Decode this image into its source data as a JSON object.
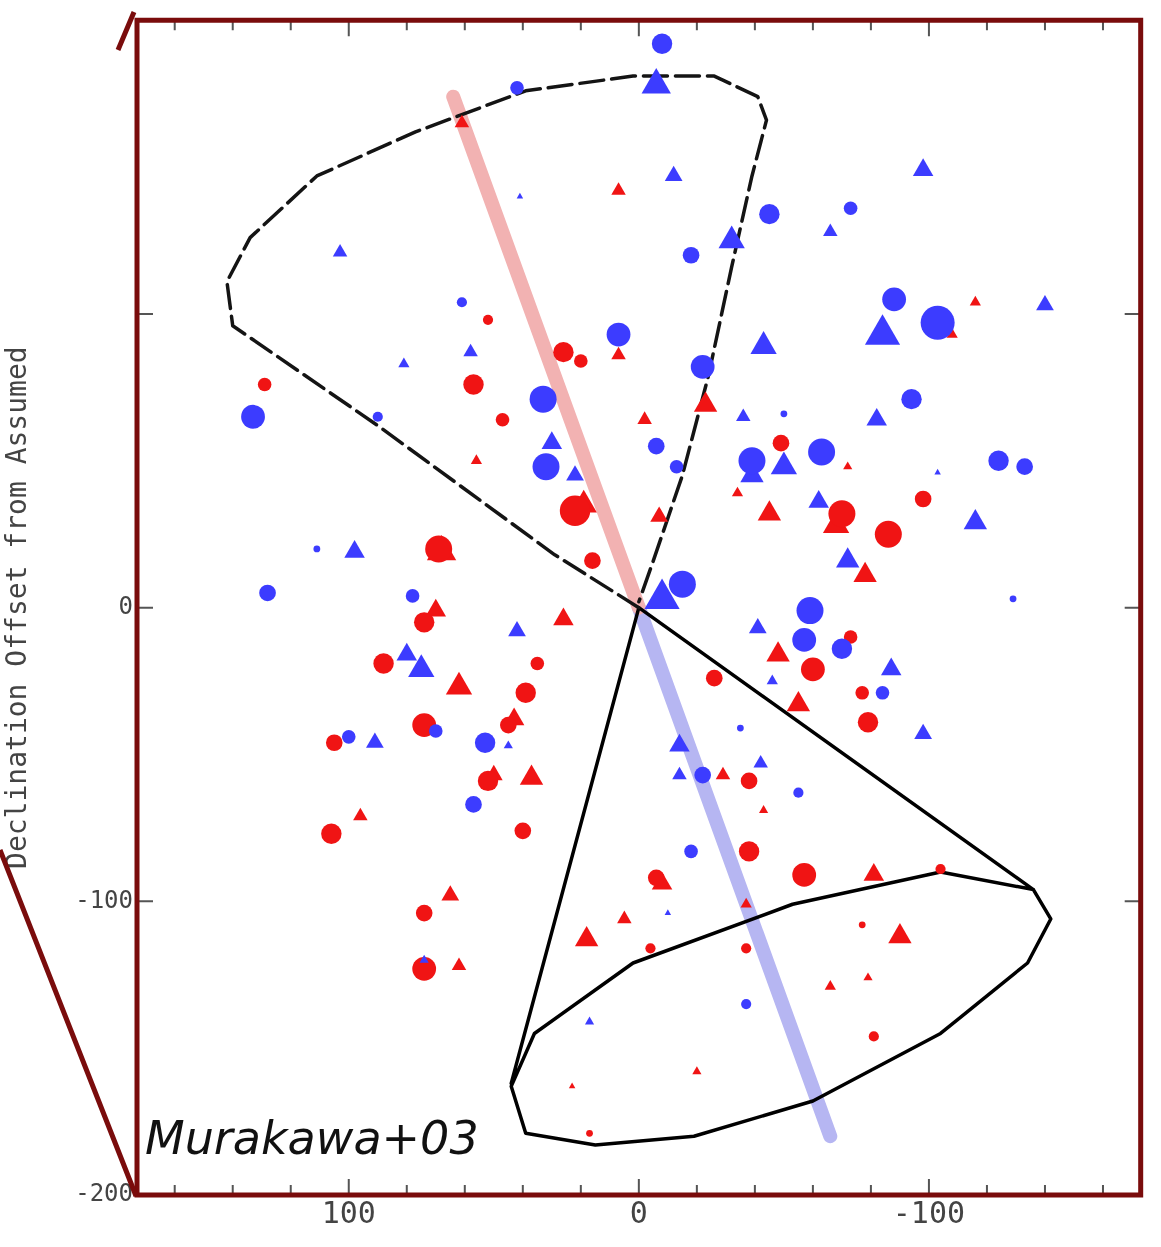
{
  "chart_data": {
    "type": "bubble",
    "ylabel": "Declination Offset from Assumed",
    "annotations": [
      "Murakawa+03"
    ],
    "xlim": [
      173,
      -173
    ],
    "ylim": [
      -200,
      200
    ],
    "xticks": [
      {
        "value": 160,
        "label": null
      },
      {
        "value": 140,
        "label": null
      },
      {
        "value": 120,
        "label": null
      },
      100,
      {
        "value": 80,
        "label": null
      },
      {
        "value": 60,
        "label": null
      },
      {
        "value": 40,
        "label": null
      },
      {
        "value": 20,
        "label": null
      },
      0,
      {
        "value": -20,
        "label": null
      },
      {
        "value": -40,
        "label": null
      },
      {
        "value": -60,
        "label": null
      },
      {
        "value": -80,
        "label": null
      },
      -100,
      {
        "value": -120,
        "label": null
      },
      {
        "value": -140,
        "label": null
      },
      {
        "value": -160,
        "label": null
      }
    ],
    "yticks": [
      -200,
      -100,
      0,
      {
        "value": 100,
        "label": null
      }
    ],
    "grid": false,
    "legend": false,
    "series": [
      {
        "marker": "circle",
        "color": "#3c3cff",
        "x": [
          -8,
          42,
          -45,
          -73,
          -18,
          61,
          -88,
          -103,
          7,
          -22,
          33,
          -94,
          90,
          133,
          -6,
          -13,
          32,
          -39,
          -63,
          -124,
          -133,
          -50,
          111,
          128,
          78,
          -15,
          -59,
          -57,
          -70,
          -129,
          100,
          70,
          53,
          57,
          -22,
          -18,
          -84,
          -35,
          -55,
          -37
        ],
        "values": [
          192,
          177,
          134,
          136,
          120,
          104,
          105,
          97,
          93,
          82,
          71,
          71,
          65,
          65,
          55,
          48,
          48,
          50,
          53,
          50,
          48,
          66,
          20,
          5,
          4,
          8,
          -1,
          -11,
          -14,
          3,
          -44,
          -42,
          -46,
          -67,
          -57,
          -83,
          -29,
          -41,
          -63,
          -135
        ],
        "sizes": [
          0.36,
          0.16,
          0.36,
          0.16,
          0.24,
          0.09,
          0.49,
          1,
          0.49,
          0.49,
          0.63,
          0.36,
          0.09,
          0.49,
          0.24,
          0.16,
          0.63,
          0.63,
          0.63,
          0.36,
          0.24,
          0.04,
          0.04,
          0.24,
          0.16,
          0.63,
          0.63,
          0.49,
          0.36,
          0.04,
          0.16,
          0.16,
          0.36,
          0.24,
          0.24,
          0.16,
          0.16,
          0.04,
          0.09,
          0.09
        ]
      },
      {
        "marker": "triangle",
        "color": "#3c3cff",
        "x": [
          -6,
          -12,
          -98,
          41,
          -66,
          -32,
          103,
          -43,
          -84,
          -140,
          81,
          58,
          -36,
          -82,
          30,
          22,
          -50,
          -39,
          -62,
          -103,
          -116,
          98,
          -72,
          -8,
          42,
          -41,
          80,
          75,
          -87,
          -46,
          91,
          -98,
          -14,
          45,
          74,
          -42,
          -14,
          17,
          -10
        ],
        "values": [
          178,
          147,
          149,
          140,
          128,
          125,
          121,
          89,
          93,
          103,
          83,
          87,
          65,
          64,
          56,
          45,
          48,
          45,
          36,
          46,
          29,
          19,
          16,
          3,
          -8,
          -7,
          -16,
          -21,
          -21,
          -25,
          -46,
          -43,
          -47,
          -47,
          -120,
          -53,
          -57,
          -141,
          -104
        ],
        "sizes": [
          0.41,
          0.15,
          0.2,
          0.02,
          0.1,
          0.33,
          0.1,
          0.33,
          0.59,
          0.15,
          0.06,
          0.1,
          0.1,
          0.2,
          0.2,
          0.15,
          0.33,
          0.26,
          0.2,
          0.02,
          0.26,
          0.2,
          0.26,
          0.59,
          0.15,
          0.15,
          0.2,
          0.33,
          0.2,
          0.06,
          0.15,
          0.15,
          0.2,
          0.04,
          0.04,
          0.1,
          0.1,
          0.04,
          0.02
        ]
      },
      {
        "marker": "circle",
        "color": "#f01414",
        "x": [
          129,
          -49,
          -98,
          -86,
          -70,
          22,
          69,
          16,
          74,
          88,
          35,
          -26,
          -60,
          -73,
          -77,
          -79,
          39,
          74,
          105,
          45,
          52,
          106,
          40,
          -38,
          -38,
          -57,
          -6,
          74,
          74,
          -4,
          -77,
          -81,
          17,
          -104,
          -37,
          52,
          26,
          20,
          57,
          47
        ],
        "values": [
          76,
          56,
          37,
          25,
          32,
          33,
          20,
          16,
          -5,
          -19,
          -19,
          -24,
          -21,
          -10,
          -29,
          -39,
          -29,
          -40,
          -46,
          -40,
          -59,
          -77,
          -76,
          -59,
          -83,
          -91,
          -92,
          -104,
          -123,
          -116,
          -108,
          -146,
          -179,
          -89,
          -116,
          98,
          87,
          84,
          76,
          64
        ],
        "sizes": [
          0.16,
          0.24,
          0.24,
          0.63,
          0.63,
          0.8,
          0.63,
          0.24,
          0.36,
          0.36,
          0.16,
          0.24,
          0.49,
          0.16,
          0.16,
          0.36,
          0.36,
          0.49,
          0.24,
          0.24,
          0.36,
          0.36,
          0.24,
          0.24,
          0.36,
          0.49,
          0.24,
          0.24,
          0.49,
          0.09,
          0.04,
          0.09,
          0.04,
          0.09,
          0.09,
          0.09,
          0.36,
          0.16,
          0.36,
          0.16
        ]
      },
      {
        "marker": "triangle",
        "color": "#f01414",
        "x": [
          -116,
          -108,
          -23,
          56,
          -72,
          -34,
          -45,
          -7,
          -68,
          19,
          68,
          -78,
          70,
          26,
          -48,
          62,
          43,
          -55,
          96,
          37,
          50,
          -43,
          -29,
          -8,
          -81,
          65,
          18,
          5,
          -90,
          62,
          -66,
          -79,
          -20,
          23,
          -37,
          61,
          7,
          7,
          -2
        ],
        "values": [
          104,
          93,
          69,
          50,
          48,
          39,
          32,
          31,
          28,
          35,
          19,
          11,
          -1,
          -4,
          -16,
          -27,
          -38,
          -33,
          -71,
          -58,
          -57,
          -69,
          -57,
          -94,
          -91,
          -98,
          -113,
          -106,
          -112,
          -122,
          -129,
          -126,
          -158,
          -163,
          -101,
          165,
          142,
          86,
          64
        ],
        "sizes": [
          0.06,
          0.06,
          0.26,
          0.06,
          0.04,
          0.06,
          0.26,
          0.15,
          0.33,
          0.33,
          0.41,
          0.26,
          0.2,
          0.2,
          0.26,
          0.33,
          0.2,
          0.26,
          0.1,
          0.26,
          0.15,
          0.04,
          0.1,
          0.2,
          0.2,
          0.15,
          0.26,
          0.1,
          0.26,
          0.1,
          0.06,
          0.04,
          0.04,
          0.02,
          0.06,
          0.1,
          0.1,
          0.1,
          0.1
        ]
      },
      {
        "type": "line",
        "marker": "none",
        "color": "#f2b2b2",
        "x": [
          64,
          0
        ],
        "values": [
          174,
          0
        ]
      },
      {
        "type": "line",
        "marker": "none",
        "color": "#b6b6f2",
        "x": [
          0,
          -66
        ],
        "values": [
          0,
          -180
        ]
      },
      {
        "type": "line",
        "marker": "none",
        "line_style": "dashed",
        "color": "#141414",
        "x": [
          0,
          29,
          90,
          140,
          142,
          134,
          111,
          77,
          39,
          2,
          -26,
          -41,
          -44,
          -39,
          -32,
          -24,
          -15,
          -5,
          0
        ],
        "values": [
          0,
          18,
          62,
          96,
          111,
          126,
          147,
          162,
          176,
          181,
          181,
          174,
          166,
          147,
          116,
          79,
          45,
          16,
          2
        ]
      },
      {
        "type": "line",
        "marker": "none",
        "line_style": "solid",
        "color": "#000000",
        "x": [
          44,
          0,
          -136,
          -142,
          -134,
          -104,
          -60,
          -19,
          15,
          39,
          44,
          36,
          2,
          -53,
          -104,
          -136
        ],
        "values": [
          -162,
          0,
          -96,
          -106,
          -121,
          -145,
          -168,
          -180,
          -183,
          -179,
          -163,
          -145,
          -121,
          -101,
          -90,
          -96
        ]
      }
    ]
  }
}
